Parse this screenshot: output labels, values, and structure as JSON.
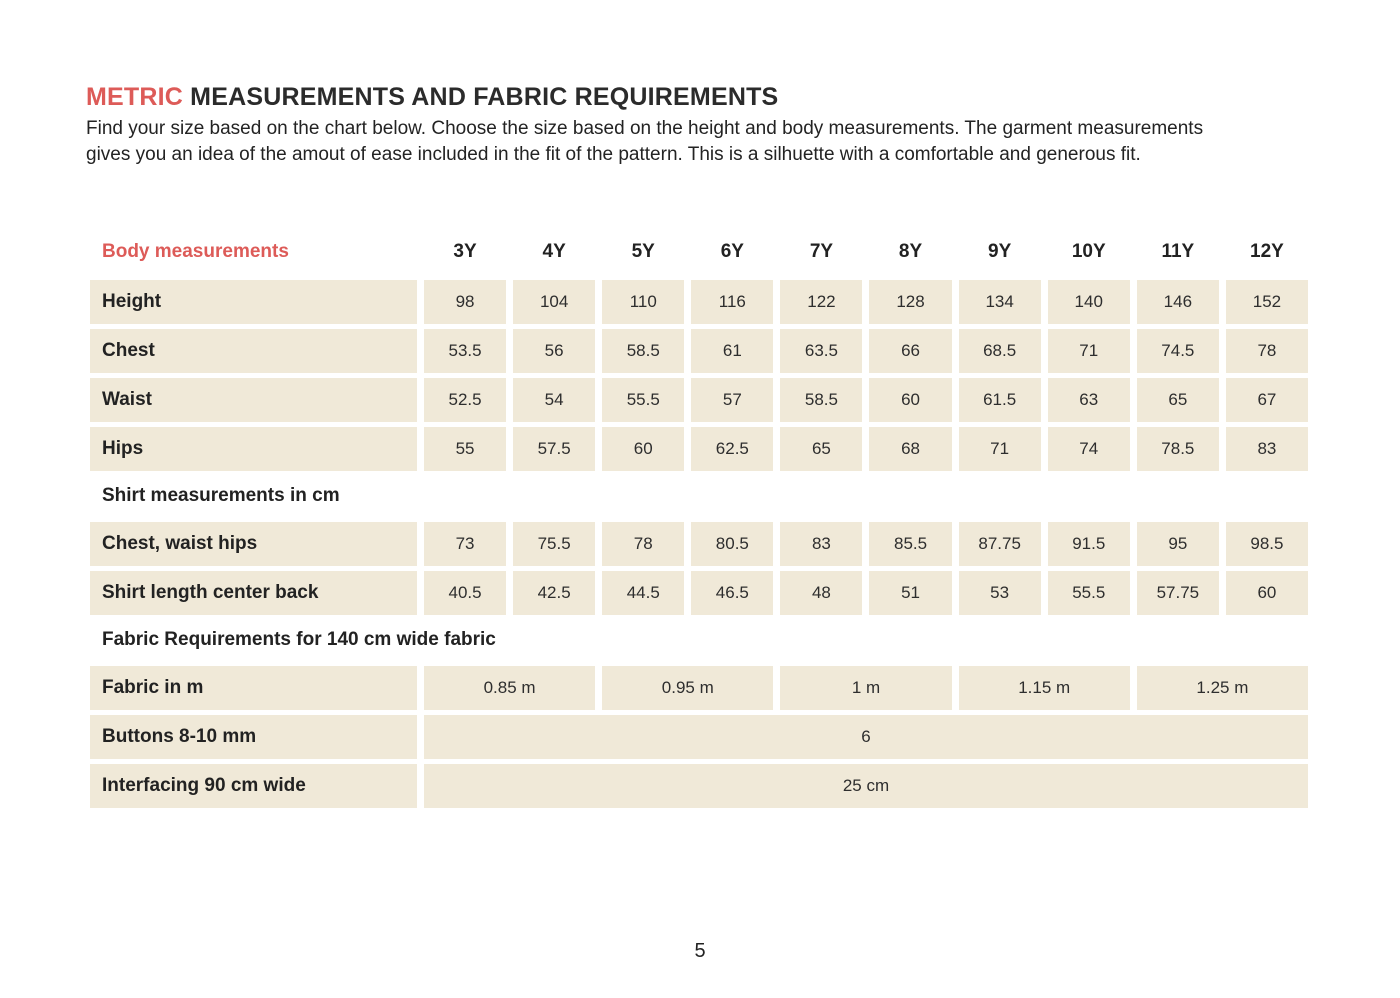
{
  "colors": {
    "accent_red": "#dd5b58",
    "cell_beige": "#f0e9d8",
    "text_dark": "#2a2a2a"
  },
  "header": {
    "title_accent": "METRIC",
    "title_rest": " MEASUREMENTS AND FABRIC REQUIREMENTS",
    "intro_line1": "Find your size based on the chart below. Choose the size based on the height and body measurements. The garment measurements",
    "intro_line2": "gives you an idea of the amout of ease included in the fit of the pattern. This is a silhuette with a comfortable and generous fit."
  },
  "table": {
    "header_label": "Body measurements",
    "sizes": [
      "3Y",
      "4Y",
      "5Y",
      "6Y",
      "7Y",
      "8Y",
      "9Y",
      "10Y",
      "11Y",
      "12Y"
    ],
    "body_rows": [
      {
        "label": "Height",
        "values": [
          "98",
          "104",
          "110",
          "116",
          "122",
          "128",
          "134",
          "140",
          "146",
          "152"
        ]
      },
      {
        "label": "Chest",
        "values": [
          "53.5",
          "56",
          "58.5",
          "61",
          "63.5",
          "66",
          "68.5",
          "71",
          "74.5",
          "78"
        ]
      },
      {
        "label": "Waist",
        "values": [
          "52.5",
          "54",
          "55.5",
          "57",
          "58.5",
          "60",
          "61.5",
          "63",
          "65",
          "67"
        ]
      },
      {
        "label": "Hips",
        "values": [
          "55",
          "57.5",
          "60",
          "62.5",
          "65",
          "68",
          "71",
          "74",
          "78.5",
          "83"
        ]
      }
    ],
    "shirt_section_title": "Shirt measurements in cm",
    "shirt_rows": [
      {
        "label": "Chest, waist hips",
        "values": [
          "73",
          "75.5",
          "78",
          "80.5",
          "83",
          "85.5",
          "87.75",
          "91.5",
          "95",
          "98.5"
        ]
      },
      {
        "label": "Shirt length center back",
        "values": [
          "40.5",
          "42.5",
          "44.5",
          "46.5",
          "48",
          "51",
          "53",
          "55.5",
          "57.75",
          "60"
        ]
      }
    ],
    "fabric_section_title": "Fabric Requirements for 140 cm wide fabric",
    "fabric_row": {
      "label": "Fabric in m",
      "values": [
        "0.85 m",
        "0.95 m",
        "1 m",
        "1.15 m",
        "1.25 m"
      ]
    },
    "buttons_row": {
      "label": "Buttons 8-10 mm",
      "value": "6"
    },
    "interfacing_row": {
      "label": "Interfacing 90 cm wide",
      "value": "25 cm"
    }
  },
  "footer": {
    "page_number": "5"
  }
}
